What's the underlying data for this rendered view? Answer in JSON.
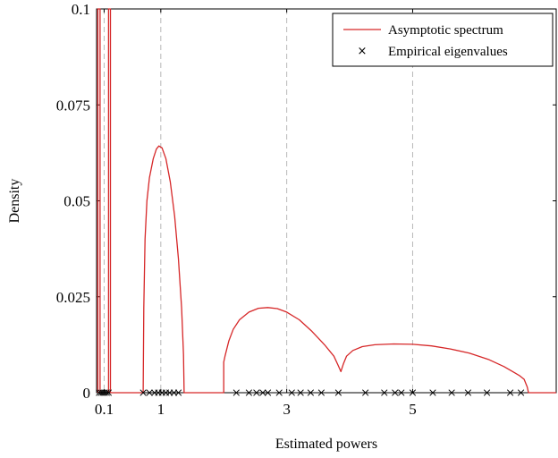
{
  "chart_data": {
    "type": "line",
    "title": "",
    "xlabel": "Estimated powers",
    "ylabel": "Density",
    "xlim": [
      -0.02,
      7.28
    ],
    "ylim": [
      0,
      0.1
    ],
    "x_ticks": [
      {
        "value": 0.1,
        "label": "0.1"
      },
      {
        "value": 1,
        "label": "1"
      },
      {
        "value": 3,
        "label": "3"
      },
      {
        "value": 5,
        "label": "5"
      }
    ],
    "y_ticks": [
      {
        "value": 0,
        "label": "0"
      },
      {
        "value": 0.025,
        "label": "0.025"
      },
      {
        "value": 0.05,
        "label": "0.05"
      },
      {
        "value": 0.075,
        "label": "0.075"
      },
      {
        "value": 0.1,
        "label": "0.1"
      }
    ],
    "grid": "vertical dashed at x ticks",
    "legend": "top-right",
    "series": [
      {
        "name": "Asymptotic spectrum",
        "kind": "line",
        "color": "#d62728",
        "segments": [
          [
            [
              0.0,
              0.0
            ],
            [
              0.0,
              0.1
            ],
            [
              0.035,
              0.1
            ],
            [
              0.035,
              0.0
            ]
          ],
          [
            [
              0.17,
              0.0
            ],
            [
              0.17,
              0.1
            ],
            [
              0.2,
              0.1
            ],
            [
              0.2,
              0.0
            ]
          ],
          [
            [
              0.2,
              0.0
            ],
            [
              0.72,
              0.0
            ],
            [
              0.73,
              0.022
            ],
            [
              0.75,
              0.04
            ],
            [
              0.78,
              0.05
            ],
            [
              0.82,
              0.056
            ],
            [
              0.88,
              0.061
            ],
            [
              0.93,
              0.0635
            ],
            [
              0.97,
              0.0643
            ],
            [
              1.02,
              0.0638
            ],
            [
              1.08,
              0.061
            ],
            [
              1.15,
              0.055
            ],
            [
              1.22,
              0.046
            ],
            [
              1.28,
              0.035
            ],
            [
              1.33,
              0.022
            ],
            [
              1.36,
              0.01
            ],
            [
              1.37,
              0.0
            ],
            [
              2.0,
              0.0
            ],
            [
              2.0,
              0.008
            ],
            [
              2.02,
              0.0095
            ],
            [
              2.08,
              0.0135
            ],
            [
              2.15,
              0.0165
            ],
            [
              2.25,
              0.019
            ],
            [
              2.4,
              0.021
            ],
            [
              2.55,
              0.022
            ],
            [
              2.7,
              0.0222
            ],
            [
              2.85,
              0.0219
            ],
            [
              3.0,
              0.021
            ],
            [
              3.2,
              0.019
            ],
            [
              3.4,
              0.016
            ],
            [
              3.6,
              0.0125
            ],
            [
              3.75,
              0.0095
            ],
            [
              3.82,
              0.007
            ],
            [
              3.86,
              0.0055
            ],
            [
              3.9,
              0.0075
            ],
            [
              3.95,
              0.0095
            ],
            [
              4.05,
              0.011
            ],
            [
              4.2,
              0.012
            ],
            [
              4.4,
              0.0125
            ],
            [
              4.7,
              0.0127
            ],
            [
              5.0,
              0.0126
            ],
            [
              5.3,
              0.0122
            ],
            [
              5.6,
              0.0114
            ],
            [
              5.9,
              0.0103
            ],
            [
              6.2,
              0.0087
            ],
            [
              6.45,
              0.0068
            ],
            [
              6.62,
              0.0052
            ],
            [
              6.7,
              0.0044
            ],
            [
              6.77,
              0.0035
            ],
            [
              6.82,
              0.0015
            ],
            [
              6.84,
              0.0
            ],
            [
              7.28,
              0.0
            ]
          ]
        ]
      },
      {
        "name": "Empirical eigenvalues",
        "kind": "scatter",
        "marker": "x",
        "color": "#000000",
        "points": [
          [
            0.02,
            0
          ],
          [
            0.05,
            0
          ],
          [
            0.08,
            0
          ],
          [
            0.11,
            0
          ],
          [
            0.14,
            0
          ],
          [
            0.17,
            0
          ],
          [
            0.72,
            0
          ],
          [
            0.82,
            0
          ],
          [
            0.9,
            0
          ],
          [
            0.96,
            0
          ],
          [
            1.02,
            0
          ],
          [
            1.08,
            0
          ],
          [
            1.14,
            0
          ],
          [
            1.21,
            0
          ],
          [
            1.28,
            0
          ],
          [
            2.2,
            0
          ],
          [
            2.4,
            0
          ],
          [
            2.52,
            0
          ],
          [
            2.62,
            0
          ],
          [
            2.7,
            0
          ],
          [
            2.88,
            0
          ],
          [
            3.08,
            0
          ],
          [
            3.22,
            0
          ],
          [
            3.38,
            0
          ],
          [
            3.55,
            0
          ],
          [
            3.82,
            0
          ],
          [
            4.25,
            0
          ],
          [
            4.55,
            0
          ],
          [
            4.72,
            0
          ],
          [
            4.82,
            0
          ],
          [
            5.0,
            0
          ],
          [
            5.32,
            0
          ],
          [
            5.62,
            0
          ],
          [
            5.88,
            0
          ],
          [
            6.18,
            0
          ],
          [
            6.55,
            0
          ],
          [
            6.72,
            0
          ]
        ]
      }
    ]
  }
}
